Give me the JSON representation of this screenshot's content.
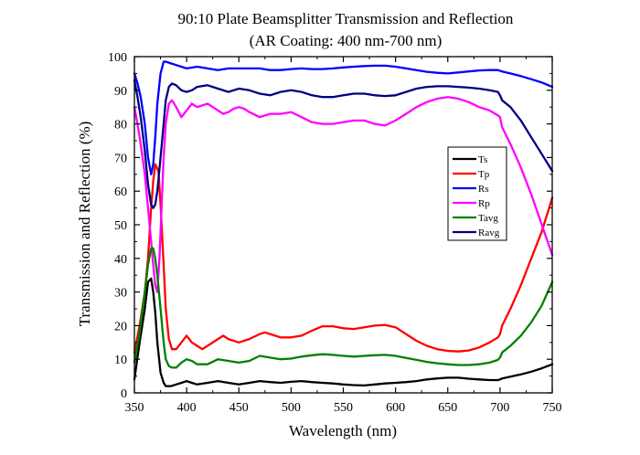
{
  "chart_data": {
    "type": "line",
    "title": "90:10 Plate Beamsplitter Transmission and Reflection",
    "subtitle": "(AR Coating: 400 nm-700 nm)",
    "xlabel": "Wavelength (nm)",
    "ylabel": "Transmission and Reflection (%)",
    "xlim": [
      350,
      750
    ],
    "ylim": [
      0,
      100
    ],
    "xticks": [
      350,
      400,
      450,
      500,
      550,
      600,
      650,
      700,
      750
    ],
    "yticks": [
      0,
      10,
      20,
      30,
      40,
      50,
      60,
      70,
      80,
      90,
      100
    ],
    "grid": false,
    "legend_position": "right-middle",
    "series": [
      {
        "name": "Ts",
        "color": "#000000",
        "x": [
          350,
          355,
          360,
          363,
          366,
          368,
          370,
          372,
          375,
          378,
          380,
          385,
          390,
          395,
          400,
          405,
          410,
          420,
          430,
          440,
          450,
          460,
          470,
          480,
          490,
          500,
          510,
          520,
          530,
          540,
          550,
          560,
          570,
          580,
          590,
          600,
          610,
          620,
          630,
          640,
          650,
          660,
          670,
          680,
          690,
          698,
          700,
          702,
          710,
          720,
          730,
          740,
          750
        ],
        "y": [
          4,
          15,
          25,
          33,
          34,
          30,
          24,
          15,
          6,
          3,
          2,
          2,
          2.5,
          3,
          3.5,
          3,
          2.5,
          3,
          3.5,
          3,
          2.5,
          3,
          3.5,
          3.2,
          3,
          3.3,
          3.5,
          3.2,
          3,
          2.8,
          2.5,
          2.3,
          2.2,
          2.5,
          2.8,
          3,
          3.2,
          3.5,
          4,
          4.3,
          4.5,
          4.5,
          4.2,
          4,
          3.8,
          3.8,
          4,
          4.3,
          4.8,
          5.5,
          6.3,
          7.3,
          8.5
        ]
      },
      {
        "name": "Tp",
        "color": "#ff0000",
        "x": [
          350,
          355,
          360,
          363,
          366,
          368,
          370,
          373,
          375,
          378,
          380,
          383,
          386,
          390,
          395,
          400,
          405,
          410,
          415,
          420,
          430,
          435,
          440,
          450,
          460,
          470,
          475,
          480,
          490,
          500,
          510,
          520,
          530,
          540,
          550,
          560,
          570,
          580,
          590,
          600,
          610,
          620,
          630,
          640,
          650,
          660,
          670,
          680,
          690,
          698,
          700,
          702,
          710,
          720,
          730,
          740,
          750
        ],
        "y": [
          12,
          20,
          30,
          40,
          55,
          63,
          68,
          66,
          56,
          38,
          25,
          16,
          13,
          13,
          15,
          17,
          15,
          14,
          13,
          14,
          16,
          17,
          16,
          15,
          16,
          17.5,
          18,
          17.5,
          16.5,
          16.5,
          17,
          18.5,
          19.8,
          19.8,
          19.2,
          19,
          19.5,
          20,
          20.2,
          19.5,
          17.5,
          15.5,
          14,
          13,
          12.5,
          12.3,
          12.6,
          13.5,
          15,
          16.5,
          17.5,
          20,
          25,
          32,
          40,
          48,
          58
        ]
      },
      {
        "name": "Rs",
        "color": "#0000ff",
        "x": [
          350,
          353,
          356,
          360,
          363,
          366,
          368,
          370,
          372,
          375,
          378,
          380,
          385,
          390,
          395,
          400,
          410,
          420,
          430,
          440,
          450,
          460,
          470,
          480,
          490,
          500,
          510,
          520,
          530,
          540,
          550,
          560,
          570,
          580,
          590,
          600,
          610,
          620,
          630,
          640,
          650,
          660,
          670,
          680,
          690,
          698,
          700,
          702,
          710,
          720,
          730,
          740,
          750
        ],
        "y": [
          95,
          92,
          88,
          80,
          70,
          65,
          68,
          76,
          86,
          95,
          98.5,
          98.5,
          98,
          97.5,
          97,
          96.5,
          97,
          96.5,
          96,
          96.5,
          96.5,
          96.5,
          96.5,
          96,
          96,
          96.3,
          96.5,
          96.3,
          96.3,
          96.5,
          96.8,
          97,
          97.2,
          97.3,
          97.3,
          97,
          96.5,
          96,
          95.5,
          95.2,
          95,
          95.3,
          95.6,
          95.9,
          96,
          96,
          95.8,
          95.6,
          95,
          94.2,
          93.3,
          92.3,
          91
        ]
      },
      {
        "name": "Rp",
        "color": "#ff00ff",
        "x": [
          350,
          353,
          356,
          360,
          363,
          366,
          368,
          370,
          372,
          374,
          376,
          378,
          380,
          383,
          386,
          390,
          395,
          400,
          405,
          410,
          415,
          420,
          425,
          430,
          435,
          440,
          445,
          450,
          455,
          460,
          470,
          480,
          490,
          500,
          510,
          520,
          530,
          540,
          550,
          560,
          570,
          580,
          590,
          600,
          610,
          620,
          630,
          640,
          650,
          660,
          670,
          680,
          690,
          698,
          700,
          702,
          710,
          720,
          730,
          740,
          750
        ],
        "y": [
          85,
          80,
          74,
          65,
          55,
          45,
          38,
          32,
          30,
          40,
          55,
          70,
          80,
          86,
          87,
          85,
          82,
          84,
          86,
          85,
          85.5,
          86,
          85,
          84,
          83,
          83.5,
          84.5,
          85,
          84.5,
          83.5,
          82,
          83,
          83,
          83.5,
          82,
          80.5,
          80,
          80,
          80.5,
          81,
          81,
          80,
          79.5,
          81,
          83,
          85,
          86.5,
          87.5,
          88,
          87.5,
          86.5,
          85,
          84,
          82.5,
          82,
          79,
          74,
          67,
          59,
          50,
          41
        ]
      },
      {
        "name": "Tavg",
        "color": "#008000",
        "x": [
          350,
          355,
          360,
          363,
          366,
          368,
          370,
          372,
          375,
          378,
          380,
          383,
          386,
          390,
          395,
          400,
          405,
          410,
          420,
          430,
          440,
          450,
          460,
          470,
          480,
          490,
          500,
          510,
          520,
          530,
          540,
          550,
          560,
          570,
          580,
          590,
          600,
          610,
          620,
          630,
          640,
          650,
          660,
          670,
          680,
          690,
          698,
          700,
          702,
          710,
          720,
          730,
          740,
          750
        ],
        "y": [
          9,
          18,
          30,
          38,
          43,
          43,
          40,
          35,
          25,
          15,
          10,
          8,
          7.5,
          7.5,
          9,
          10,
          9.5,
          8.5,
          8.5,
          10,
          9.5,
          9,
          9.5,
          11,
          10.5,
          10,
          10.2,
          10.8,
          11.2,
          11.5,
          11.3,
          11,
          10.8,
          11,
          11.2,
          11.3,
          11,
          10.4,
          9.8,
          9.2,
          8.8,
          8.5,
          8.3,
          8.3,
          8.5,
          9,
          9.8,
          10.5,
          12,
          14,
          17,
          21,
          26,
          33
        ]
      },
      {
        "name": "Ravg",
        "color": "#000080",
        "x": [
          350,
          353,
          356,
          360,
          363,
          366,
          368,
          370,
          372,
          375,
          378,
          380,
          383,
          386,
          390,
          395,
          400,
          405,
          410,
          420,
          430,
          440,
          450,
          460,
          470,
          480,
          490,
          500,
          510,
          520,
          530,
          540,
          550,
          560,
          570,
          580,
          590,
          600,
          610,
          620,
          630,
          640,
          650,
          660,
          670,
          680,
          690,
          698,
          700,
          702,
          710,
          720,
          730,
          740,
          750
        ],
        "y": [
          93,
          88,
          82,
          72,
          62,
          56,
          55,
          56,
          60,
          70,
          80,
          87,
          91,
          92,
          91.5,
          90,
          89.5,
          90,
          91,
          91.5,
          90.5,
          89.5,
          90.5,
          90,
          89,
          88.5,
          89.5,
          90,
          89.5,
          88.5,
          88,
          88,
          88.5,
          89,
          89,
          88.5,
          88.3,
          88.5,
          89.5,
          90.5,
          91,
          91.2,
          91.2,
          91,
          90.8,
          90.5,
          90,
          89.5,
          88.5,
          87,
          85,
          81,
          76,
          71,
          66
        ]
      }
    ]
  }
}
